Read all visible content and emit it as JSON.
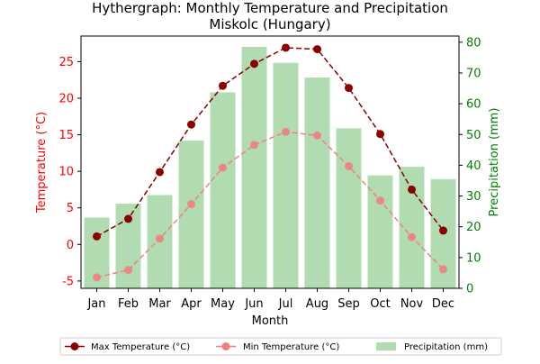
{
  "chart_data": {
    "type": "bar",
    "title": "Hythergraph: Monthly Temperature and Precipitation",
    "subtitle": "Miskolc (Hungary)",
    "xlabel": "Month",
    "ylabel_left": "Temperature (°C)",
    "ylabel_right": "Precipitation (mm)",
    "categories": [
      "Jan",
      "Feb",
      "Mar",
      "Apr",
      "May",
      "Jun",
      "Jul",
      "Aug",
      "Sep",
      "Oct",
      "Nov",
      "Dec"
    ],
    "ylim_left": [
      -6,
      28.5
    ],
    "ylim_right": [
      0,
      82
    ],
    "yticks_left": [
      "-5",
      "0",
      "5",
      "10",
      "15",
      "20",
      "25"
    ],
    "yticks_right": [
      "0",
      "10",
      "20",
      "30",
      "40",
      "50",
      "60",
      "70",
      "80"
    ],
    "series": [
      {
        "name": "Max Temperature (°C)",
        "kind": "line",
        "axis": "left",
        "color": "#8b0000",
        "values": [
          1.1,
          3.5,
          9.9,
          16.4,
          21.7,
          24.7,
          26.9,
          26.7,
          21.4,
          15.1,
          7.5,
          1.9
        ]
      },
      {
        "name": "Min Temperature (°C)",
        "kind": "line",
        "axis": "left",
        "color": "#f08080",
        "values": [
          -4.5,
          -3.5,
          0.8,
          5.5,
          10.5,
          13.6,
          15.4,
          14.9,
          10.7,
          6.0,
          1.0,
          -3.4
        ]
      },
      {
        "name": "Precipitation (mm)",
        "kind": "bar",
        "axis": "right",
        "color": "#2ca02c",
        "values": [
          23,
          27.5,
          30.3,
          48,
          63.7,
          78.5,
          73.3,
          68.5,
          52,
          36.7,
          39.5,
          35.5
        ]
      }
    ],
    "legend_position": "bottom"
  }
}
